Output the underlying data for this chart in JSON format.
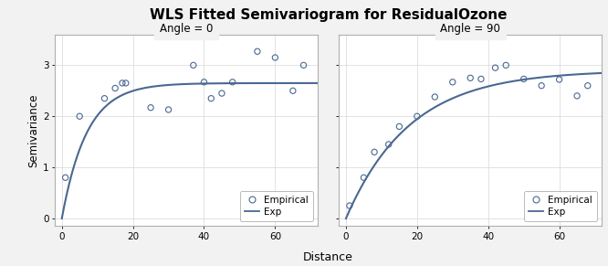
{
  "title": "WLS Fitted Semivariogram for ResidualOzone",
  "title_fontsize": 11,
  "xlabel": "Distance",
  "ylabel": "Semivariance",
  "subplot_titles": [
    "Angle = 0",
    "Angle = 90"
  ],
  "background_color": "#f2f2f2",
  "panel_background": "#ffffff",
  "line_color": "#4a6892",
  "marker_color": "#4a6892",
  "xlim": [
    -2,
    72
  ],
  "ylim": [
    -0.15,
    3.6
  ],
  "yticks": [
    0,
    1,
    2,
    3
  ],
  "xticks": [
    0,
    20,
    40,
    60
  ],
  "emp0_x": [
    1,
    5,
    12,
    15,
    17,
    18,
    25,
    30,
    37,
    40,
    42,
    45,
    48,
    55,
    60,
    65,
    68
  ],
  "emp0_y": [
    0.8,
    2.0,
    2.35,
    2.55,
    2.65,
    2.65,
    2.17,
    2.13,
    3.0,
    2.67,
    2.35,
    2.45,
    2.67,
    3.27,
    3.15,
    2.5,
    3.0
  ],
  "emp90_x": [
    1,
    5,
    8,
    12,
    15,
    20,
    25,
    30,
    35,
    38,
    42,
    45,
    50,
    55,
    60,
    65,
    68
  ],
  "emp90_y": [
    0.25,
    0.8,
    1.3,
    1.45,
    1.8,
    2.0,
    2.38,
    2.67,
    2.75,
    2.73,
    2.95,
    3.0,
    2.73,
    2.6,
    2.72,
    2.4,
    2.6
  ],
  "fit0_nugget": 0.0,
  "fit0_sill": 2.65,
  "fit0_range": 7.0,
  "fit90_nugget": 0.0,
  "fit90_sill": 2.9,
  "fit90_range": 18.0,
  "legend_fontsize": 7.5,
  "subtitle_fontsize": 8.5,
  "tick_fontsize": 7.5,
  "label_fontsize": 9,
  "ylabel_fontsize": 8.5
}
